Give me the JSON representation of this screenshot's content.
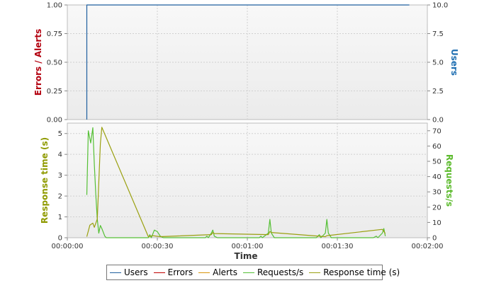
{
  "colors": {
    "users": "#1f5f9f",
    "errors": "#c00000",
    "alerts": "#d9950b",
    "requests": "#55c035",
    "response": "#9aa010",
    "errors_alerts_label": "#b3000f",
    "users_label": "#1f6fb2",
    "response_label": "#8f9a00",
    "requests_label": "#5dbb2e"
  },
  "chart_data": [
    {
      "type": "line",
      "panel": "top",
      "xlabel": "",
      "ylabel_left": "Errors / Alerts",
      "ylabel_right": "Users",
      "ylim_left": [
        0,
        1
      ],
      "ylim_right": [
        0,
        10
      ],
      "yticks_left": [
        "0.00",
        "0.25",
        "0.50",
        "0.75",
        "1.00"
      ],
      "yticks_right": [
        "0.0",
        "2.5",
        "5.0",
        "7.5",
        "10.0"
      ],
      "series": [
        {
          "name": "Users",
          "axis": "right",
          "color_key": "users",
          "points": [
            [
              6.5,
              0
            ],
            [
              6.5,
              10
            ],
            [
              114,
              10
            ]
          ]
        }
      ]
    },
    {
      "type": "line",
      "panel": "bottom",
      "xlabel": "Time",
      "ylabel_left": "Response time (s)",
      "ylabel_right": "Requests/s",
      "ylim_left": [
        0,
        5.5
      ],
      "ylim_right": [
        0,
        75
      ],
      "yticks_left": [
        "0",
        "1",
        "2",
        "3",
        "4",
        "5"
      ],
      "yticks_right": [
        "0",
        "10",
        "20",
        "30",
        "40",
        "50",
        "60",
        "70"
      ],
      "xlim": [
        0,
        120
      ],
      "xticks": [
        "00:00:00",
        "00:00:30",
        "00:01:00",
        "00:01:30",
        "00:02:00"
      ],
      "series": [
        {
          "name": "Requests/s",
          "axis": "right",
          "color_key": "requests",
          "points": [
            [
              6.5,
              28
            ],
            [
              7,
              70
            ],
            [
              7.8,
              62
            ],
            [
              8.5,
              72
            ],
            [
              9,
              48
            ],
            [
              9.5,
              28
            ],
            [
              10,
              12
            ],
            [
              10.5,
              3
            ],
            [
              11,
              8
            ],
            [
              11.5,
              6
            ],
            [
              12.5,
              1
            ],
            [
              13,
              0
            ],
            [
              27,
              0
            ],
            [
              27.5,
              2
            ],
            [
              28,
              0
            ],
            [
              29,
              5
            ],
            [
              30,
              4
            ],
            [
              31,
              1
            ],
            [
              32,
              0
            ],
            [
              46,
              0
            ],
            [
              46.5,
              1
            ],
            [
              47,
              0
            ],
            [
              48,
              3
            ],
            [
              48.5,
              5
            ],
            [
              49,
              1
            ],
            [
              50,
              0
            ],
            [
              64,
              0
            ],
            [
              64.5,
              1
            ],
            [
              65,
              0
            ],
            [
              67,
              3
            ],
            [
              67.5,
              12
            ],
            [
              68,
              3
            ],
            [
              69,
              0
            ],
            [
              83,
              0
            ],
            [
              84,
              2
            ],
            [
              84.5,
              0
            ],
            [
              86,
              3
            ],
            [
              86.5,
              12
            ],
            [
              87,
              3
            ],
            [
              88,
              0
            ],
            [
              102,
              0
            ],
            [
              103,
              1
            ],
            [
              103.5,
              0
            ],
            [
              105,
              3
            ],
            [
              105.5,
              6
            ],
            [
              106,
              1
            ]
          ]
        },
        {
          "name": "Response time (s)",
          "axis": "left",
          "color_key": "response",
          "points": [
            [
              6.5,
              0.05
            ],
            [
              7.5,
              0.6
            ],
            [
              8.5,
              0.7
            ],
            [
              9,
              0.5
            ],
            [
              10,
              0.9
            ],
            [
              11,
              4.5
            ],
            [
              11.5,
              5.3
            ],
            [
              27,
              0.05
            ],
            [
              28.5,
              0.1
            ],
            [
              31,
              0.05
            ],
            [
              48,
              0.15
            ],
            [
              48.5,
              0.25
            ],
            [
              49,
              0.2
            ],
            [
              67,
              0.15
            ],
            [
              67.5,
              0.3
            ],
            [
              68,
              0.25
            ],
            [
              86,
              0.05
            ],
            [
              86.5,
              0.1
            ],
            [
              105,
              0.4
            ],
            [
              106,
              0.2
            ]
          ]
        }
      ]
    }
  ],
  "legend": {
    "items": [
      {
        "label": "Users",
        "color_key": "users"
      },
      {
        "label": "Errors",
        "color_key": "errors"
      },
      {
        "label": "Alerts",
        "color_key": "alerts"
      },
      {
        "label": "Requests/s",
        "color_key": "requests"
      },
      {
        "label": "Response time (s)",
        "color_key": "response"
      }
    ]
  }
}
